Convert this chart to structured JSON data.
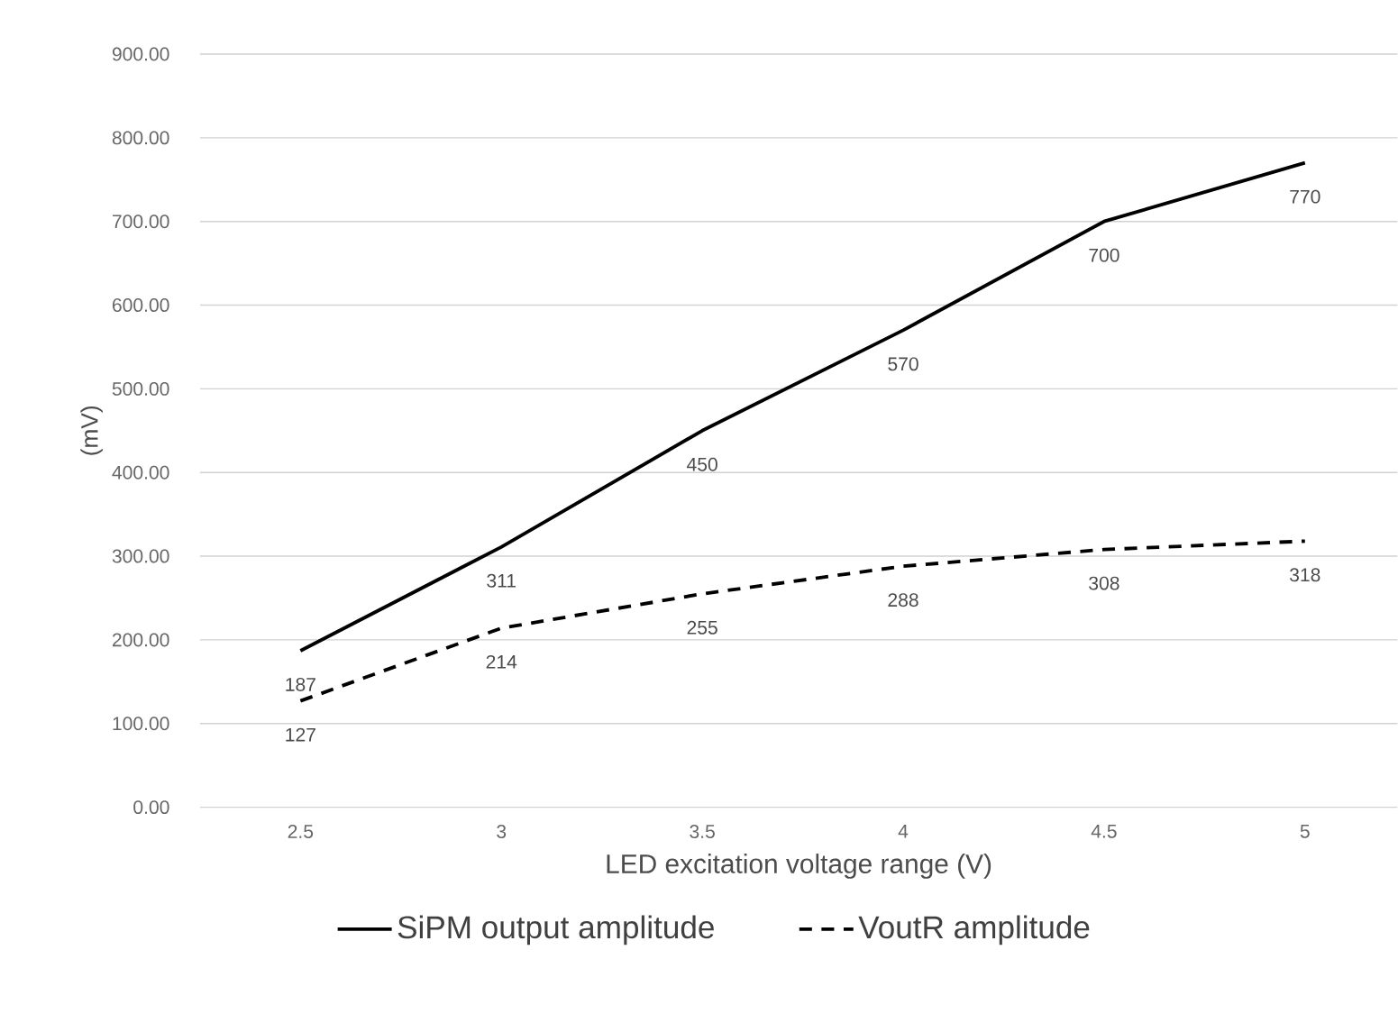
{
  "chart_data": {
    "type": "line",
    "xlabel": "LED excitation voltage range (V)",
    "ylabel": "(mV)",
    "categories": [
      "2.5",
      "3",
      "3.5",
      "4",
      "4.5",
      "5"
    ],
    "series": [
      {
        "name": "SiPM output amplitude",
        "color": "#000000",
        "line_style": "solid",
        "values": [
          187,
          311,
          450,
          570,
          700,
          770
        ]
      },
      {
        "name": "VoutR amplitude",
        "color": "#000000",
        "line_style": "dashed",
        "values": [
          127,
          214,
          255,
          288,
          308,
          318
        ]
      }
    ],
    "ylim": [
      0,
      900
    ],
    "yticks": [
      {
        "value": 0,
        "label": "0.00"
      },
      {
        "value": 100,
        "label": "100.00"
      },
      {
        "value": 200,
        "label": "200.00"
      },
      {
        "value": 300,
        "label": "300.00"
      },
      {
        "value": 400,
        "label": "400.00"
      },
      {
        "value": 500,
        "label": "500.00"
      },
      {
        "value": 600,
        "label": "600.00"
      },
      {
        "value": 700,
        "label": "700.00"
      },
      {
        "value": 800,
        "label": "800.00"
      },
      {
        "value": 900,
        "label": "900.00"
      }
    ],
    "grid": "y",
    "legend": "bottom",
    "marker": "none",
    "data_labels": true
  }
}
